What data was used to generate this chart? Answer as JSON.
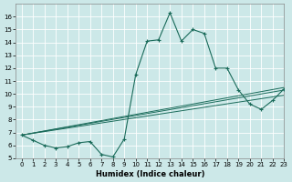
{
  "xlabel": "Humidex (Indice chaleur)",
  "ylabel": "",
  "xlim": [
    -0.5,
    23
  ],
  "ylim": [
    5,
    17
  ],
  "yticks": [
    5,
    6,
    7,
    8,
    9,
    10,
    11,
    12,
    13,
    14,
    15,
    16
  ],
  "xticks": [
    0,
    1,
    2,
    3,
    4,
    5,
    6,
    7,
    8,
    9,
    10,
    11,
    12,
    13,
    14,
    15,
    16,
    17,
    18,
    19,
    20,
    21,
    22,
    23
  ],
  "bg_color": "#cce8e8",
  "grid_color": "#ffffff",
  "line_color": "#1a6b5a",
  "main_curve": {
    "x": [
      0,
      1,
      2,
      3,
      4,
      5,
      6,
      7,
      8,
      9,
      10,
      11,
      12,
      13,
      14,
      15,
      16,
      17,
      18,
      19,
      20,
      21,
      22,
      23
    ],
    "y": [
      6.8,
      6.4,
      6.0,
      5.8,
      5.9,
      6.2,
      6.3,
      5.3,
      5.1,
      6.5,
      11.5,
      14.1,
      14.2,
      16.3,
      14.1,
      15.0,
      14.7,
      12.0,
      12.0,
      10.3,
      9.2,
      8.8,
      9.5,
      10.4
    ]
  },
  "trend_lines": [
    {
      "x": [
        0,
        23
      ],
      "y": [
        6.8,
        9.9
      ]
    },
    {
      "x": [
        0,
        23
      ],
      "y": [
        6.8,
        10.3
      ]
    },
    {
      "x": [
        0,
        23
      ],
      "y": [
        6.8,
        10.5
      ]
    }
  ]
}
